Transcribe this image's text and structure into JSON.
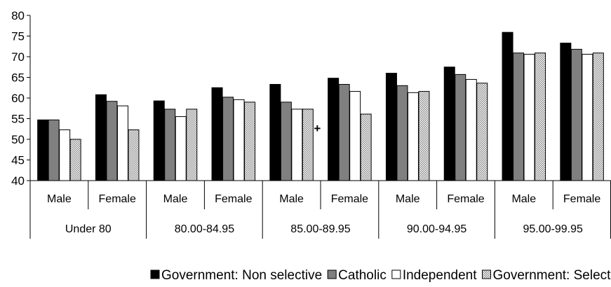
{
  "chart_data": {
    "type": "bar",
    "ylim": [
      40,
      80
    ],
    "yticks": [
      40,
      45,
      50,
      55,
      60,
      65,
      70,
      75,
      80
    ],
    "grid": false,
    "legend_position": "bottom",
    "categories": [
      {
        "group": "Under 80",
        "sex": "Male"
      },
      {
        "group": "Under 80",
        "sex": "Female"
      },
      {
        "group": "80.00-84.95",
        "sex": "Male"
      },
      {
        "group": "80.00-84.95",
        "sex": "Female"
      },
      {
        "group": "85.00-89.95",
        "sex": "Male"
      },
      {
        "group": "85.00-89.95",
        "sex": "Female"
      },
      {
        "group": "90.00-94.95",
        "sex": "Male"
      },
      {
        "group": "90.00-94.95",
        "sex": "Female"
      },
      {
        "group": "95.00-99.95",
        "sex": "Male"
      },
      {
        "group": "95.00-99.95",
        "sex": "Female"
      }
    ],
    "groups": [
      "Under 80",
      "80.00-84.95",
      "85.00-89.95",
      "90.00-94.95",
      "95.00-99.95"
    ],
    "series": [
      {
        "name": "Government: Non selective",
        "fill": "solid",
        "color": "#000000",
        "values": [
          54.7,
          60.8,
          59.3,
          62.5,
          63.3,
          64.8,
          66.0,
          67.5,
          75.9,
          73.3
        ]
      },
      {
        "name": "Catholic",
        "fill": "solid",
        "color": "#808080",
        "values": [
          54.7,
          59.2,
          57.3,
          60.2,
          59.0,
          63.3,
          63.0,
          65.7,
          70.9,
          71.8
        ]
      },
      {
        "name": "Independent",
        "fill": "solid",
        "color": "#ffffff",
        "values": [
          52.3,
          58.1,
          55.5,
          59.6,
          57.3,
          61.6,
          61.3,
          64.5,
          70.6,
          70.6
        ]
      },
      {
        "name": "Government: Selective",
        "fill": "dotted",
        "color": "#c0c0c0",
        "values": [
          50.0,
          52.3,
          57.3,
          59.0,
          57.3,
          56.1,
          61.6,
          63.6,
          70.9,
          70.9
        ]
      }
    ],
    "annotations": [
      {
        "text": "+",
        "category_index": 4,
        "series_index": 3
      }
    ]
  }
}
